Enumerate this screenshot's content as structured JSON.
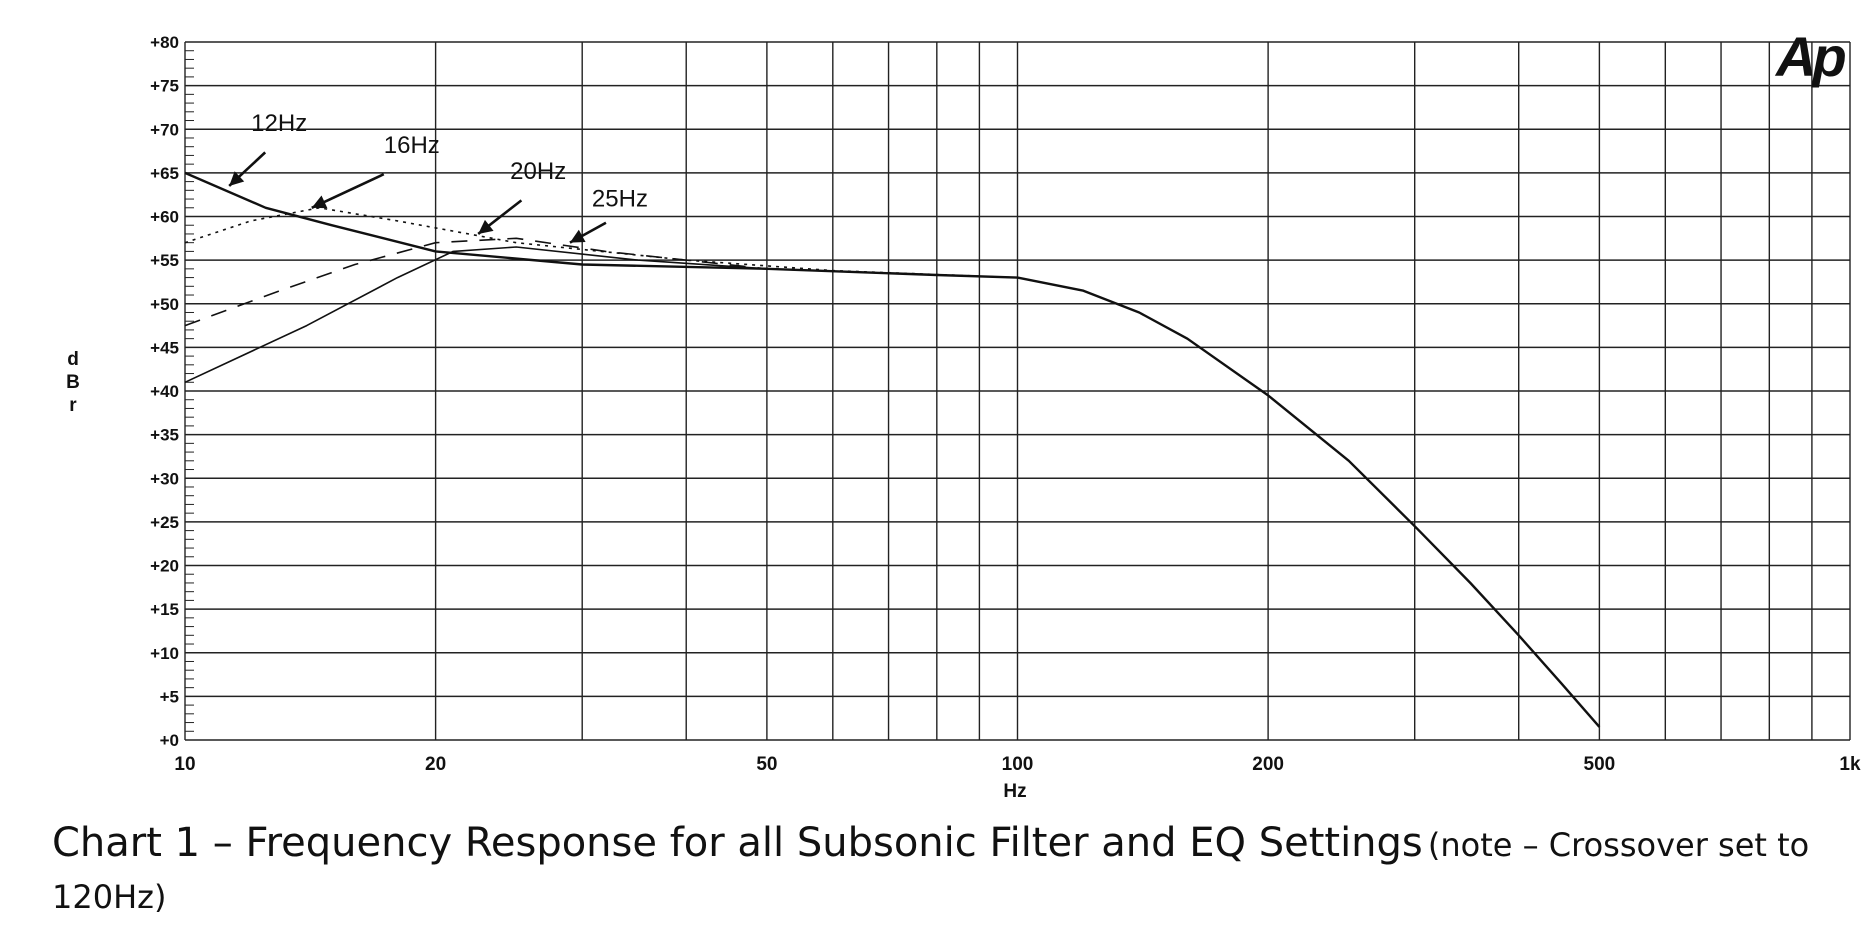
{
  "chart_data": {
    "type": "line",
    "ylabel": "dBr",
    "xlabel": "Hz",
    "xscale": "log",
    "xlim": [
      10,
      1000
    ],
    "ylim": [
      0,
      80
    ],
    "grid": true,
    "x_ticks": [
      {
        "value": 10,
        "label": "10"
      },
      {
        "value": 20,
        "label": "20"
      },
      {
        "value": 50,
        "label": "50"
      },
      {
        "value": 100,
        "label": "100"
      },
      {
        "value": 200,
        "label": "200"
      },
      {
        "value": 500,
        "label": "500"
      },
      {
        "value": 1000,
        "label": "1k"
      }
    ],
    "y_ticks": [
      {
        "value": 80,
        "label": "+80"
      },
      {
        "value": 75,
        "label": "+75"
      },
      {
        "value": 70,
        "label": "+70"
      },
      {
        "value": 65,
        "label": "+65"
      },
      {
        "value": 60,
        "label": "+60"
      },
      {
        "value": 55,
        "label": "+55"
      },
      {
        "value": 50,
        "label": "+50"
      },
      {
        "value": 45,
        "label": "+45"
      },
      {
        "value": 40,
        "label": "+40"
      },
      {
        "value": 35,
        "label": "+35"
      },
      {
        "value": 30,
        "label": "+30"
      },
      {
        "value": 25,
        "label": "+25"
      },
      {
        "value": 20,
        "label": "+20"
      },
      {
        "value": 15,
        "label": "+15"
      },
      {
        "value": 10,
        "label": "+10"
      },
      {
        "value": 5,
        "label": "+5"
      },
      {
        "value": 0,
        "label": "+0"
      }
    ],
    "series": [
      {
        "name": "12Hz",
        "dash": "solid",
        "points": [
          [
            10,
            65
          ],
          [
            12.5,
            61
          ],
          [
            15,
            59
          ],
          [
            20,
            56
          ],
          [
            30,
            54.5
          ],
          [
            50,
            54
          ],
          [
            80,
            53.3
          ],
          [
            100,
            53
          ],
          [
            120,
            51.5
          ],
          [
            140,
            49
          ],
          [
            160,
            46
          ],
          [
            200,
            39.5
          ],
          [
            250,
            32
          ],
          [
            300,
            24.5
          ],
          [
            350,
            18
          ],
          [
            400,
            12
          ],
          [
            450,
            6.5
          ],
          [
            500,
            1.5
          ]
        ]
      },
      {
        "name": "16Hz",
        "dash": "dotted",
        "points": [
          [
            10,
            57
          ],
          [
            12,
            59.5
          ],
          [
            14.5,
            61
          ],
          [
            18,
            59.5
          ],
          [
            25,
            57
          ],
          [
            40,
            55
          ],
          [
            60,
            53.8
          ],
          [
            100,
            53
          ]
        ]
      },
      {
        "name": "20Hz",
        "dash": "dashed",
        "points": [
          [
            10,
            47.5
          ],
          [
            13,
            51.5
          ],
          [
            16,
            54.5
          ],
          [
            20,
            57
          ],
          [
            25,
            57.5
          ],
          [
            32,
            56
          ],
          [
            50,
            54
          ],
          [
            80,
            53.3
          ],
          [
            100,
            53
          ]
        ]
      },
      {
        "name": "25Hz",
        "dash": "solid",
        "points": [
          [
            10,
            41
          ],
          [
            14,
            47.5
          ],
          [
            18,
            53
          ],
          [
            21,
            56
          ],
          [
            25,
            56.5
          ],
          [
            35,
            55
          ],
          [
            50,
            54
          ],
          [
            80,
            53.3
          ],
          [
            100,
            53
          ]
        ]
      }
    ],
    "annotations": [
      {
        "text": "12Hz",
        "target_x": 11.3,
        "target_y": 63.5
      },
      {
        "text": "16Hz",
        "target_x": 14.2,
        "target_y": 61
      },
      {
        "text": "20Hz",
        "target_x": 22.5,
        "target_y": 58
      },
      {
        "text": "25Hz",
        "target_x": 29,
        "target_y": 57
      }
    ],
    "logo": "Ap"
  },
  "caption": {
    "main": "Chart 1 – Frequency Response for all Subsonic Filter and EQ Settings",
    "note": "(note – Crossover set to 120Hz)"
  }
}
